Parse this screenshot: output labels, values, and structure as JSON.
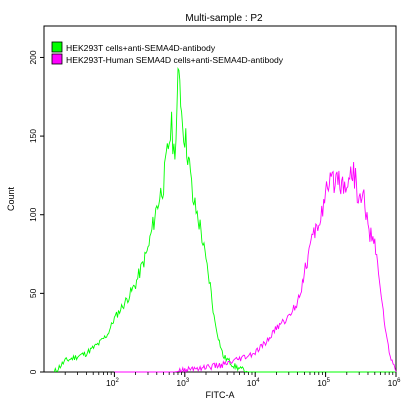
{
  "chart_data": {
    "type": "line",
    "title": "Multi-sample : P2",
    "xlabel": "FITC-A",
    "ylabel": "Count",
    "x_scale": "log",
    "xlim": [
      10,
      1000000
    ],
    "ylim": [
      0,
      220
    ],
    "x_ticks": [
      {
        "value": 100,
        "base": "10",
        "exp": "2"
      },
      {
        "value": 1000,
        "base": "10",
        "exp": "3"
      },
      {
        "value": 10000,
        "base": "10",
        "exp": "4"
      },
      {
        "value": 100000,
        "base": "10",
        "exp": "5"
      },
      {
        "value": 1000000,
        "base": "10",
        "exp": "6"
      }
    ],
    "y_ticks": [
      0,
      50,
      100,
      150,
      200
    ],
    "grid": false,
    "legend_position": "top-left",
    "series": [
      {
        "name": "HEK293T cells+anti-SEMA4D-antibody",
        "color": "#00ff00",
        "x": [
          14,
          20,
          30,
          40,
          60,
          80,
          100,
          150,
          200,
          300,
          400,
          500,
          600,
          650,
          700,
          750,
          800,
          850,
          900,
          1000,
          1100,
          1200,
          1300,
          1500,
          1700,
          2000,
          2300,
          2600,
          3000,
          3500,
          4000,
          5000,
          6000,
          8000,
          10000,
          20000,
          100000,
          1000000
        ],
        "values": [
          0,
          7,
          10,
          12,
          18,
          24,
          34,
          46,
          56,
          78,
          105,
          120,
          148,
          155,
          140,
          150,
          182,
          190,
          165,
          150,
          140,
          125,
          110,
          100,
          90,
          70,
          55,
          35,
          22,
          10,
          8,
          4,
          2,
          0,
          0,
          0,
          0,
          0
        ]
      },
      {
        "name": "HEK293T-Human SEMA4D cells+anti-SEMA4D-antibody",
        "color": "#ff00ff",
        "x": [
          100,
          700,
          1000,
          1200,
          2000,
          3000,
          4000,
          6000,
          8000,
          10000,
          15000,
          20000,
          30000,
          40000,
          50000,
          60000,
          80000,
          100000,
          120000,
          150000,
          180000,
          200000,
          250000,
          300000,
          350000,
          400000,
          500000,
          600000,
          700000,
          800000,
          1000000
        ],
        "values": [
          0,
          0,
          1,
          2,
          3,
          4,
          5,
          8,
          10,
          12,
          20,
          28,
          35,
          45,
          62,
          80,
          95,
          112,
          120,
          125,
          118,
          122,
          128,
          108,
          112,
          92,
          80,
          55,
          28,
          12,
          0
        ]
      }
    ]
  }
}
